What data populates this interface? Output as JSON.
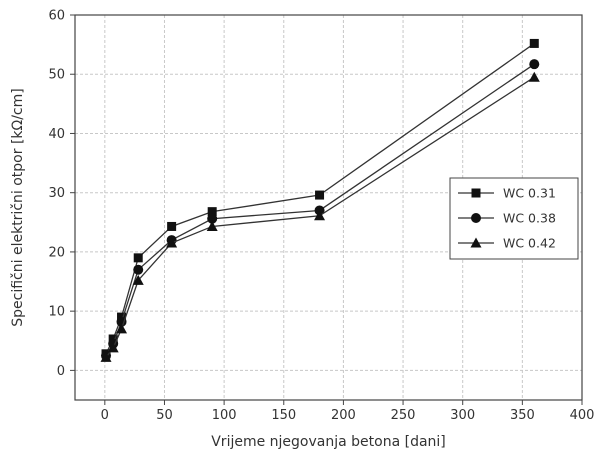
{
  "chart_data": {
    "type": "line",
    "xlabel": "Vrijeme njegovanja betona [dani]",
    "ylabel": "Specifični električni otpor [kΩ/cm]",
    "xlim": [
      -25,
      400
    ],
    "ylim": [
      -5,
      60
    ],
    "xticks": [
      0,
      50,
      100,
      150,
      200,
      250,
      300,
      350,
      400
    ],
    "yticks": [
      0,
      10,
      20,
      30,
      40,
      50,
      60
    ],
    "grid": true,
    "legend_position": "right",
    "x": [
      1,
      7,
      14,
      28,
      56,
      90,
      180,
      360
    ],
    "series": [
      {
        "name": "WC 0.31",
        "marker": "square",
        "values": [
          2.8,
          5.3,
          9.0,
          19.0,
          24.3,
          26.8,
          29.6,
          55.2
        ]
      },
      {
        "name": "WC 0.38",
        "marker": "circle",
        "values": [
          2.5,
          4.5,
          8.2,
          17.0,
          22.0,
          25.6,
          27.0,
          51.7
        ]
      },
      {
        "name": "WC 0.42",
        "marker": "triangle",
        "values": [
          2.2,
          3.8,
          7.0,
          15.2,
          21.5,
          24.3,
          26.1,
          49.5
        ]
      }
    ],
    "colors": {
      "line": "#333333",
      "marker": "#111111",
      "grid": "#c8c8c8",
      "axis": "#444444"
    }
  }
}
